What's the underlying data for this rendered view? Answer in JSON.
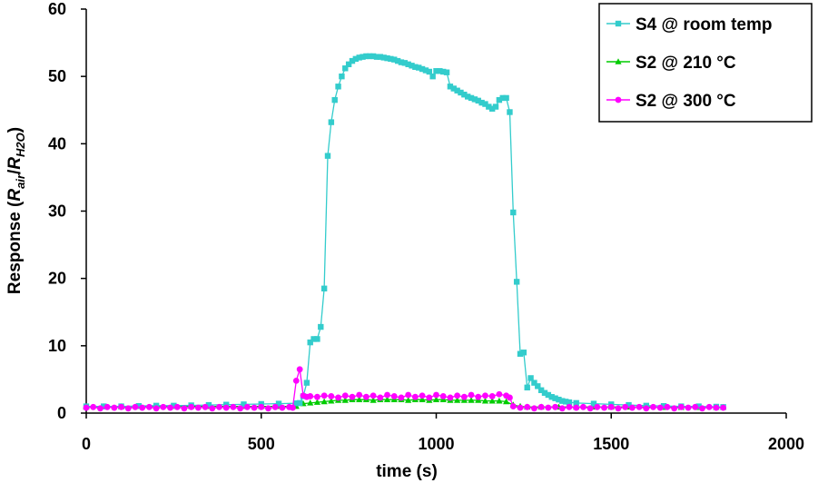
{
  "chart_data": {
    "type": "line",
    "title": "",
    "xlabel": "time (s)",
    "ylabel_main": "Response (",
    "ylabel_r1": "R",
    "ylabel_sub1": "air",
    "ylabel_slash": "/",
    "ylabel_r2": "R",
    "ylabel_sub2": "H2O",
    "ylabel_close": ")",
    "xlim": [
      0,
      2000
    ],
    "ylim": [
      0,
      60
    ],
    "xticks": [
      "0",
      "500",
      "1000",
      "1500",
      "2000"
    ],
    "yticks": [
      "0",
      "10",
      "20",
      "30",
      "40",
      "50",
      "60"
    ],
    "grid": false,
    "legend_position": "top-right",
    "series": [
      {
        "name": "S4 @ room temp",
        "color": "#33CCCC",
        "marker": "square",
        "points": [
          [
            0,
            1.0
          ],
          [
            50,
            1.0
          ],
          [
            100,
            1.0
          ],
          [
            150,
            1.05
          ],
          [
            200,
            1.1
          ],
          [
            250,
            1.1
          ],
          [
            300,
            1.15
          ],
          [
            350,
            1.2
          ],
          [
            400,
            1.25
          ],
          [
            450,
            1.3
          ],
          [
            500,
            1.35
          ],
          [
            550,
            1.4
          ],
          [
            600,
            1.45
          ],
          [
            610,
            1.5
          ],
          [
            620,
            2.5
          ],
          [
            630,
            4.5
          ],
          [
            640,
            10.5
          ],
          [
            650,
            11.0
          ],
          [
            660,
            11.0
          ],
          [
            670,
            12.8
          ],
          [
            680,
            18.5
          ],
          [
            690,
            38.2
          ],
          [
            700,
            43.2
          ],
          [
            710,
            46.5
          ],
          [
            720,
            48.5
          ],
          [
            730,
            50.0
          ],
          [
            740,
            51.2
          ],
          [
            750,
            51.8
          ],
          [
            760,
            52.3
          ],
          [
            770,
            52.6
          ],
          [
            780,
            52.8
          ],
          [
            790,
            52.9
          ],
          [
            800,
            53.0
          ],
          [
            810,
            53.0
          ],
          [
            820,
            53.0
          ],
          [
            830,
            52.9
          ],
          [
            840,
            52.9
          ],
          [
            850,
            52.8
          ],
          [
            860,
            52.7
          ],
          [
            870,
            52.6
          ],
          [
            880,
            52.5
          ],
          [
            890,
            52.3
          ],
          [
            900,
            52.1
          ],
          [
            910,
            52.0
          ],
          [
            920,
            51.8
          ],
          [
            930,
            51.6
          ],
          [
            940,
            51.4
          ],
          [
            950,
            51.3
          ],
          [
            960,
            51.1
          ],
          [
            970,
            50.9
          ],
          [
            980,
            50.7
          ],
          [
            990,
            50.0
          ],
          [
            1000,
            50.8
          ],
          [
            1010,
            50.8
          ],
          [
            1020,
            50.7
          ],
          [
            1030,
            50.6
          ],
          [
            1040,
            48.5
          ],
          [
            1050,
            48.2
          ],
          [
            1060,
            47.9
          ],
          [
            1070,
            47.6
          ],
          [
            1080,
            47.3
          ],
          [
            1090,
            47.0
          ],
          [
            1100,
            46.8
          ],
          [
            1110,
            46.6
          ],
          [
            1120,
            46.4
          ],
          [
            1130,
            46.1
          ],
          [
            1140,
            45.9
          ],
          [
            1150,
            45.5
          ],
          [
            1160,
            45.2
          ],
          [
            1170,
            45.5
          ],
          [
            1180,
            46.5
          ],
          [
            1190,
            46.8
          ],
          [
            1200,
            46.8
          ],
          [
            1210,
            44.7
          ],
          [
            1220,
            29.8
          ],
          [
            1230,
            19.5
          ],
          [
            1240,
            8.8
          ],
          [
            1250,
            9.0
          ],
          [
            1260,
            3.8
          ],
          [
            1270,
            5.2
          ],
          [
            1280,
            4.5
          ],
          [
            1290,
            4.0
          ],
          [
            1300,
            3.4
          ],
          [
            1310,
            3.0
          ],
          [
            1320,
            2.7
          ],
          [
            1330,
            2.4
          ],
          [
            1340,
            2.2
          ],
          [
            1350,
            2.0
          ],
          [
            1360,
            1.8
          ],
          [
            1370,
            1.7
          ],
          [
            1380,
            1.6
          ],
          [
            1400,
            1.5
          ],
          [
            1450,
            1.4
          ],
          [
            1500,
            1.3
          ],
          [
            1550,
            1.2
          ],
          [
            1600,
            1.1
          ],
          [
            1650,
            1.05
          ],
          [
            1700,
            1.0
          ],
          [
            1750,
            1.0
          ],
          [
            1800,
            0.95
          ],
          [
            1820,
            0.9
          ]
        ]
      },
      {
        "name": "S2 @ 210 °C",
        "color": "#00CC00",
        "marker": "triangle",
        "points": [
          [
            0,
            0.9
          ],
          [
            50,
            0.95
          ],
          [
            100,
            0.95
          ],
          [
            150,
            1.0
          ],
          [
            200,
            1.0
          ],
          [
            250,
            1.0
          ],
          [
            300,
            1.0
          ],
          [
            350,
            1.0
          ],
          [
            400,
            1.0
          ],
          [
            450,
            1.0
          ],
          [
            500,
            1.0
          ],
          [
            550,
            1.0
          ],
          [
            600,
            1.0
          ],
          [
            620,
            1.4
          ],
          [
            640,
            1.5
          ],
          [
            660,
            1.6
          ],
          [
            680,
            1.7
          ],
          [
            700,
            1.8
          ],
          [
            720,
            1.9
          ],
          [
            740,
            1.9
          ],
          [
            760,
            2.0
          ],
          [
            780,
            2.0
          ],
          [
            800,
            2.0
          ],
          [
            820,
            1.9
          ],
          [
            840,
            2.0
          ],
          [
            860,
            2.0
          ],
          [
            880,
            2.0
          ],
          [
            900,
            2.0
          ],
          [
            920,
            1.9
          ],
          [
            940,
            2.0
          ],
          [
            960,
            2.0
          ],
          [
            980,
            1.9
          ],
          [
            1000,
            2.0
          ],
          [
            1020,
            2.0
          ],
          [
            1040,
            1.9
          ],
          [
            1060,
            1.9
          ],
          [
            1080,
            1.9
          ],
          [
            1100,
            1.9
          ],
          [
            1120,
            1.9
          ],
          [
            1140,
            1.8
          ],
          [
            1160,
            1.8
          ],
          [
            1180,
            1.8
          ],
          [
            1200,
            1.7
          ],
          [
            1220,
            1.2
          ],
          [
            1240,
            1.0
          ],
          [
            1260,
            0.9
          ],
          [
            1300,
            0.9
          ],
          [
            1350,
            0.9
          ],
          [
            1400,
            0.9
          ],
          [
            1450,
            0.9
          ],
          [
            1500,
            0.9
          ],
          [
            1550,
            0.9
          ],
          [
            1600,
            0.9
          ],
          [
            1650,
            0.85
          ],
          [
            1700,
            0.85
          ],
          [
            1750,
            0.85
          ],
          [
            1800,
            0.85
          ],
          [
            1820,
            0.85
          ]
        ]
      },
      {
        "name": "S2 @ 300 °C",
        "color": "#FF00FF",
        "marker": "circle",
        "points": [
          [
            0,
            0.8
          ],
          [
            20,
            0.9
          ],
          [
            40,
            0.7
          ],
          [
            60,
            0.9
          ],
          [
            80,
            0.8
          ],
          [
            100,
            0.9
          ],
          [
            120,
            0.7
          ],
          [
            140,
            0.9
          ],
          [
            160,
            0.8
          ],
          [
            180,
            0.9
          ],
          [
            200,
            0.7
          ],
          [
            220,
            0.9
          ],
          [
            240,
            0.8
          ],
          [
            260,
            0.9
          ],
          [
            280,
            0.7
          ],
          [
            300,
            0.9
          ],
          [
            320,
            0.8
          ],
          [
            340,
            0.9
          ],
          [
            360,
            0.7
          ],
          [
            380,
            0.9
          ],
          [
            400,
            0.8
          ],
          [
            420,
            0.9
          ],
          [
            440,
            0.7
          ],
          [
            460,
            0.9
          ],
          [
            480,
            0.8
          ],
          [
            500,
            0.9
          ],
          [
            520,
            0.7
          ],
          [
            540,
            0.9
          ],
          [
            560,
            0.8
          ],
          [
            580,
            0.9
          ],
          [
            590,
            0.8
          ],
          [
            600,
            4.8
          ],
          [
            610,
            6.5
          ],
          [
            620,
            2.6
          ],
          [
            630,
            2.4
          ],
          [
            640,
            2.5
          ],
          [
            660,
            2.4
          ],
          [
            680,
            2.6
          ],
          [
            700,
            2.5
          ],
          [
            720,
            2.3
          ],
          [
            740,
            2.6
          ],
          [
            760,
            2.4
          ],
          [
            780,
            2.7
          ],
          [
            800,
            2.4
          ],
          [
            820,
            2.6
          ],
          [
            840,
            2.3
          ],
          [
            860,
            2.7
          ],
          [
            880,
            2.5
          ],
          [
            900,
            2.3
          ],
          [
            920,
            2.7
          ],
          [
            940,
            2.4
          ],
          [
            960,
            2.6
          ],
          [
            980,
            2.3
          ],
          [
            1000,
            2.7
          ],
          [
            1020,
            2.5
          ],
          [
            1040,
            2.3
          ],
          [
            1060,
            2.6
          ],
          [
            1080,
            2.4
          ],
          [
            1100,
            2.7
          ],
          [
            1120,
            2.4
          ],
          [
            1140,
            2.6
          ],
          [
            1160,
            2.5
          ],
          [
            1180,
            2.8
          ],
          [
            1200,
            2.6
          ],
          [
            1210,
            2.3
          ],
          [
            1220,
            1.0
          ],
          [
            1240,
            0.8
          ],
          [
            1260,
            0.9
          ],
          [
            1280,
            0.7
          ],
          [
            1300,
            0.9
          ],
          [
            1320,
            0.8
          ],
          [
            1340,
            0.9
          ],
          [
            1360,
            0.7
          ],
          [
            1380,
            0.9
          ],
          [
            1400,
            0.8
          ],
          [
            1420,
            0.9
          ],
          [
            1440,
            0.7
          ],
          [
            1460,
            0.9
          ],
          [
            1480,
            0.8
          ],
          [
            1500,
            0.9
          ],
          [
            1520,
            0.7
          ],
          [
            1540,
            0.9
          ],
          [
            1560,
            0.8
          ],
          [
            1580,
            0.9
          ],
          [
            1600,
            0.7
          ],
          [
            1620,
            0.9
          ],
          [
            1640,
            0.8
          ],
          [
            1660,
            0.9
          ],
          [
            1680,
            0.7
          ],
          [
            1700,
            0.9
          ],
          [
            1720,
            0.8
          ],
          [
            1740,
            0.9
          ],
          [
            1760,
            0.7
          ],
          [
            1780,
            0.9
          ],
          [
            1800,
            0.8
          ],
          [
            1820,
            0.8
          ]
        ]
      }
    ]
  }
}
